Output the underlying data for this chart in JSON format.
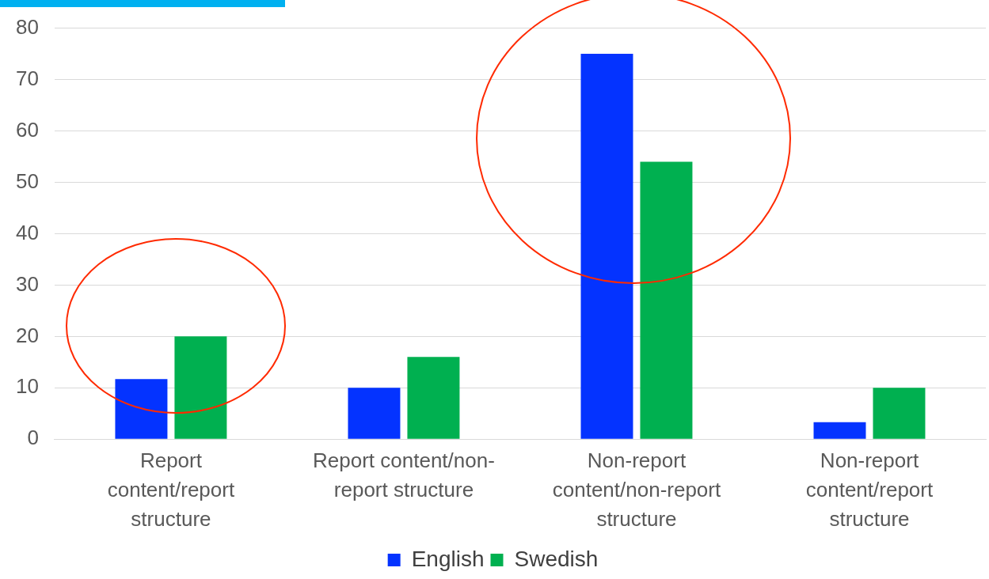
{
  "chart_data": {
    "type": "bar",
    "categories": [
      "Report content/report structure",
      "Report content/non-report structure",
      "Non-report content/non-report structure",
      "Non-report content/report structure"
    ],
    "series": [
      {
        "name": "English",
        "color": "#0433ff",
        "values": [
          11.7,
          10,
          75,
          3.3
        ]
      },
      {
        "name": "Swedish",
        "color": "#00b050",
        "values": [
          20,
          16,
          54,
          10
        ]
      }
    ],
    "ylim": [
      0,
      80
    ],
    "yticks": [
      0,
      10,
      20,
      30,
      40,
      50,
      60,
      70,
      80
    ],
    "grid": "y",
    "legend": "bottom"
  }
}
